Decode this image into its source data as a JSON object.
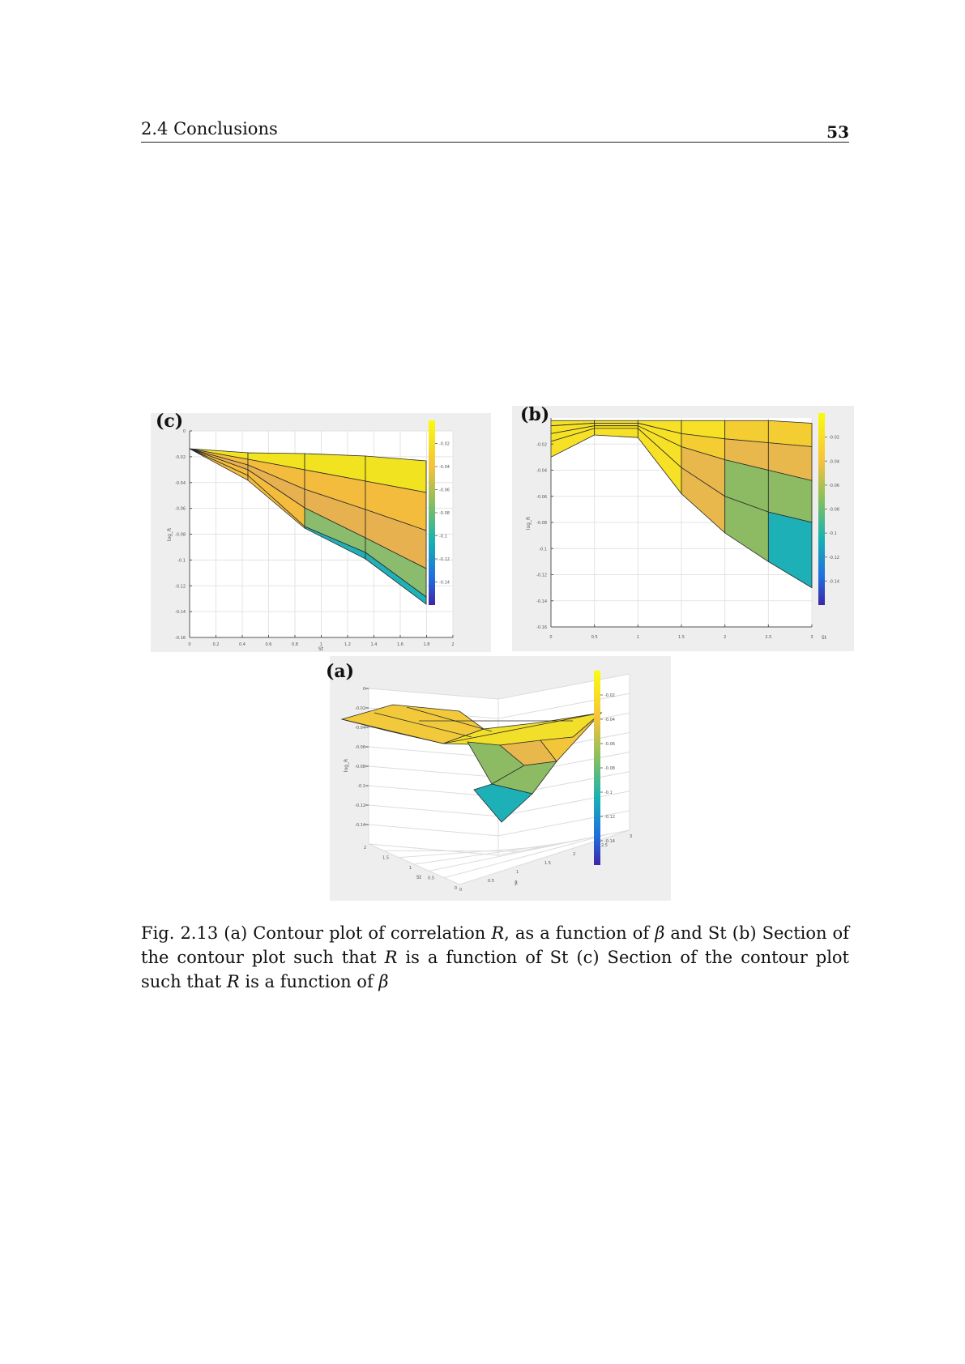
{
  "header": {
    "section": "2.4 Conclusions",
    "page_number": "53"
  },
  "panels": {
    "c": {
      "label": "(c)"
    },
    "b": {
      "label": "(b)"
    },
    "a": {
      "label": "(a)"
    }
  },
  "caption": {
    "fig": "Fig. 2.13",
    "p1": "(a) Contour plot of correlation ",
    "R1": "R",
    "p2": ", as a function of ",
    "beta1": "β",
    "p3": " and St (b) Section of the contour plot such that ",
    "R2": "R",
    "p4": " is a function of St (c) Section of the contour plot such that ",
    "R3": "R",
    "p5": " is a function of ",
    "beta2": "β"
  },
  "colors": {
    "panel_bg": "#eeeeee",
    "c_high": "#f1e31f",
    "c_mid_high": "#f3bc3d",
    "c_mid": "#e7b14f",
    "c_low_mid": "#8bbb6c",
    "c_low": "#1fb0b8",
    "cbar_top": "#f9fb0e",
    "cbar_bottom": "#3e26a8"
  },
  "chart_data": [
    {
      "id": "c",
      "type": "surface",
      "view": "section R vs beta",
      "xlabel": "St",
      "ylabel": "log_R",
      "x_ticks": [
        "0",
        "0.2",
        "0.4",
        "0.6",
        "0.8",
        "1",
        "1.2",
        "1.4",
        "1.6",
        "1.8",
        "2"
      ],
      "y_ticks": [
        "0",
        "-0.02",
        "-0.04",
        "-0.06",
        "-0.08",
        "-0.1",
        "-0.12",
        "-0.14",
        "-0.16"
      ],
      "colorbar_ticks": [
        "-0.02",
        "-0.04",
        "-0.06",
        "-0.08",
        "-0.1",
        "-0.12",
        "-0.14"
      ],
      "xlim": [
        0,
        2
      ],
      "ylim": [
        -0.16,
        0
      ]
    },
    {
      "id": "b",
      "type": "surface",
      "view": "section R vs St",
      "xlabel": "St",
      "ylabel": "log_R",
      "x_ticks": [
        "0",
        "0.5",
        "1",
        "1.5",
        "2",
        "2.5",
        "3"
      ],
      "y_ticks": [
        "-0.02",
        "-0.04",
        "-0.06",
        "-0.08",
        "-0.1",
        "-0.12",
        "-0.14",
        "-0.16"
      ],
      "colorbar_ticks": [
        "-0.02",
        "-0.04",
        "-0.06",
        "-0.08",
        "-0.1",
        "-0.12",
        "-0.14"
      ],
      "xlim": [
        0,
        3
      ],
      "ylim": [
        -0.16,
        0
      ]
    },
    {
      "id": "a",
      "type": "surface",
      "view": "3D contour R(beta, St)",
      "xlabel": "β",
      "ylabel": "St",
      "zlabel": "log_R",
      "z_ticks": [
        "0",
        "-0.02",
        "-0.04",
        "-0.06",
        "-0.08",
        "-0.1",
        "-0.12",
        "-0.14"
      ],
      "beta_ticks": [
        "0",
        "0.5",
        "1",
        "1.5",
        "2",
        "2.5",
        "3"
      ],
      "st_ticks": [
        "0",
        "0.5",
        "1",
        "1.5",
        "2"
      ],
      "colorbar_ticks": [
        "-0.02",
        "-0.04",
        "-0.06",
        "-0.08",
        "-0.1",
        "-0.12",
        "-0.14"
      ]
    }
  ]
}
